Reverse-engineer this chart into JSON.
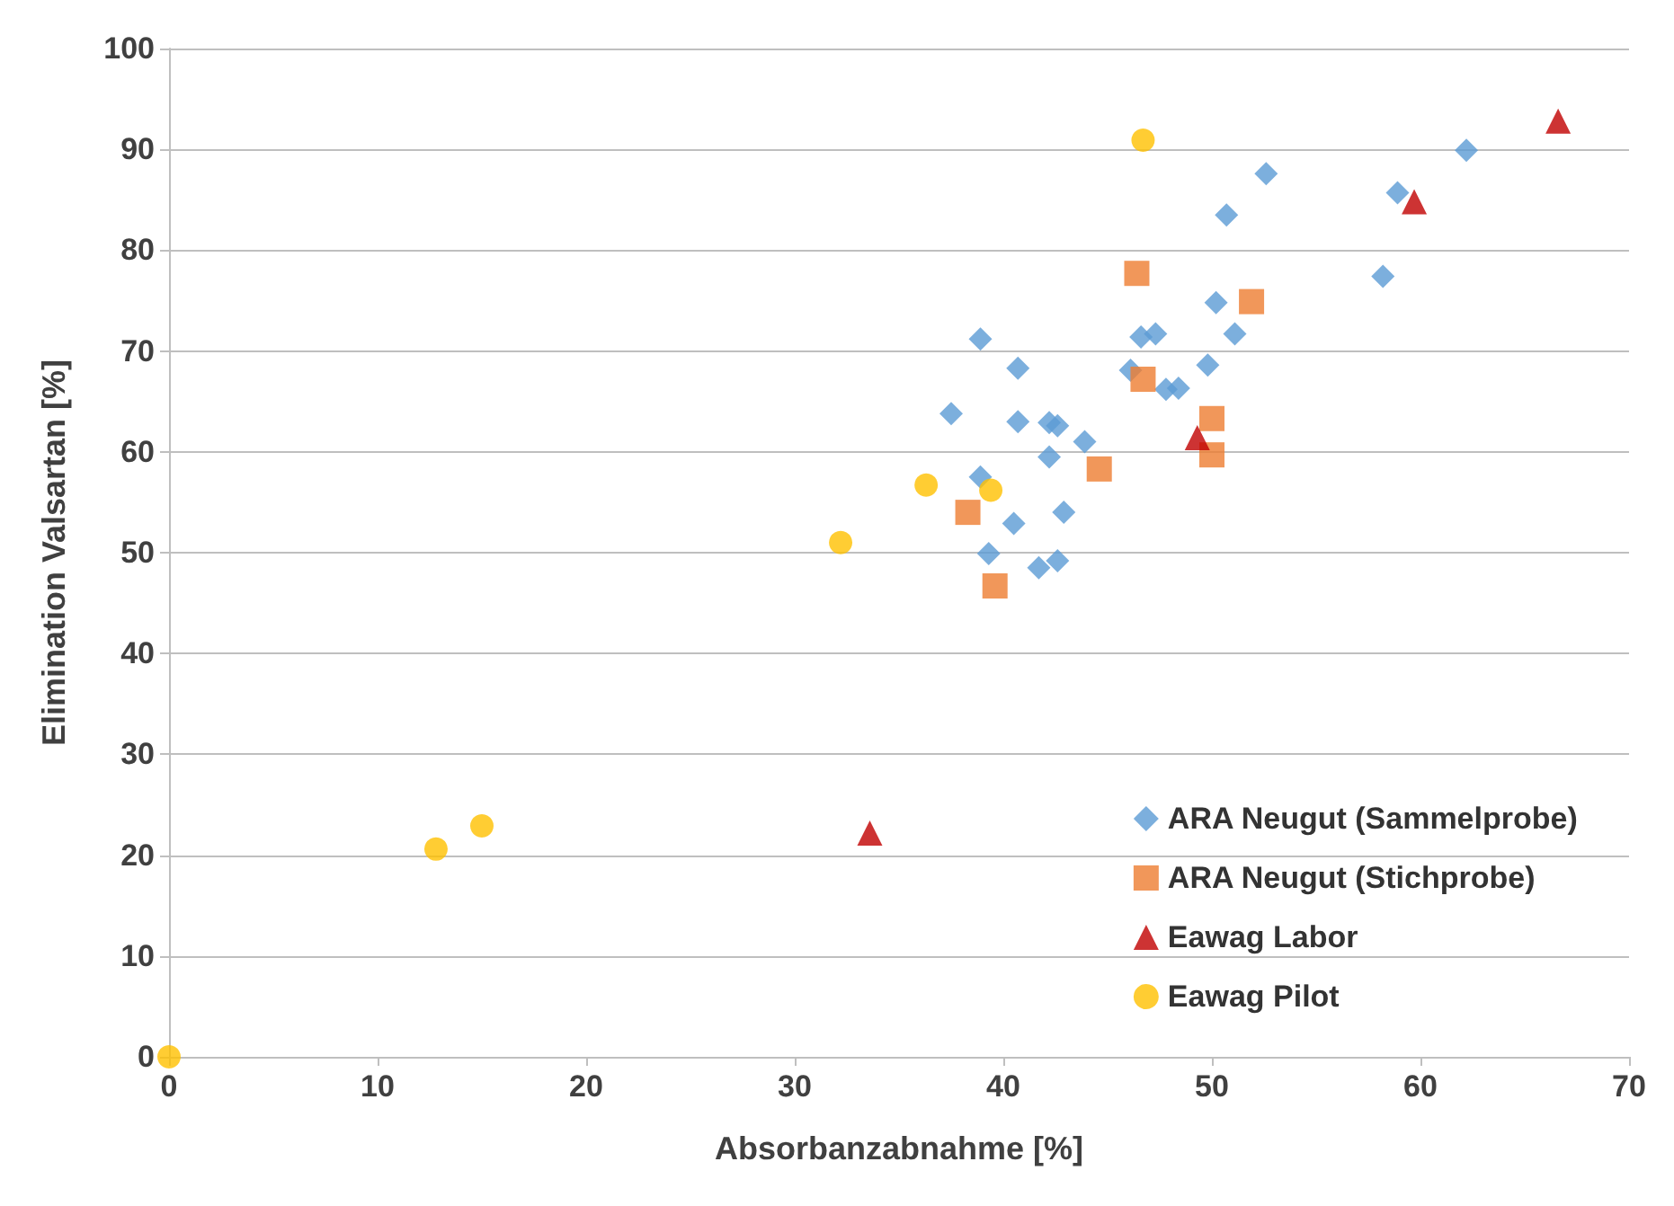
{
  "chart_data": {
    "type": "scatter",
    "xlabel": "Absorbanzabnahme [%]",
    "ylabel": "Elimination Valsartan [%]",
    "xlim": [
      0,
      70
    ],
    "xticks": [
      0,
      10,
      20,
      30,
      40,
      50,
      60,
      70
    ],
    "ylim": [
      0,
      100
    ],
    "yticks": [
      0,
      10,
      20,
      30,
      40,
      50,
      60,
      70,
      80,
      90,
      100
    ],
    "grid": "y",
    "legend": "bottom right",
    "series": [
      {
        "name": "ARA Neugut (Sammelprobe)",
        "color": "#5b9bd5",
        "marker": "diamond",
        "x": [
          62.2,
          52.6,
          50.7,
          58.9,
          58.2,
          50.2,
          51.1,
          46.6,
          47.3,
          38.9,
          40.7,
          46.1,
          49.8,
          47.8,
          48.4,
          37.5,
          40.7,
          42.2,
          42.6,
          43.9,
          42.2,
          38.9,
          40.5,
          42.9,
          39.3,
          41.7,
          42.6
        ],
        "values": [
          89.9,
          87.6,
          83.5,
          85.7,
          77.4,
          74.8,
          71.7,
          71.4,
          71.7,
          71.2,
          68.3,
          68.1,
          68.6,
          66.2,
          66.3,
          63.8,
          63.0,
          62.9,
          62.6,
          61.0,
          59.5,
          57.5,
          52.9,
          54.0,
          49.9,
          48.5,
          49.2
        ]
      },
      {
        "name": "ARA Neugut (Stichprobe)",
        "color": "#ed7d31",
        "marker": "square",
        "x": [
          46.4,
          51.9,
          46.7,
          50.0,
          50.0,
          44.6,
          38.3,
          39.6
        ],
        "values": [
          77.7,
          74.9,
          67.2,
          63.3,
          59.7,
          58.3,
          54.0,
          46.7
        ]
      },
      {
        "name": "Eawag Labor",
        "color": "#c00000",
        "marker": "triangle",
        "x": [
          66.6,
          59.7,
          49.3,
          33.6
        ],
        "values": [
          92.8,
          84.8,
          61.4,
          22.2
        ]
      },
      {
        "name": "Eawag Pilot",
        "color": "#ffc000",
        "marker": "circle",
        "x": [
          46.7,
          36.3,
          39.4,
          32.2,
          12.8,
          15.0,
          0
        ],
        "values": [
          90.9,
          56.7,
          56.2,
          51.0,
          20.6,
          22.9,
          0
        ]
      }
    ]
  }
}
